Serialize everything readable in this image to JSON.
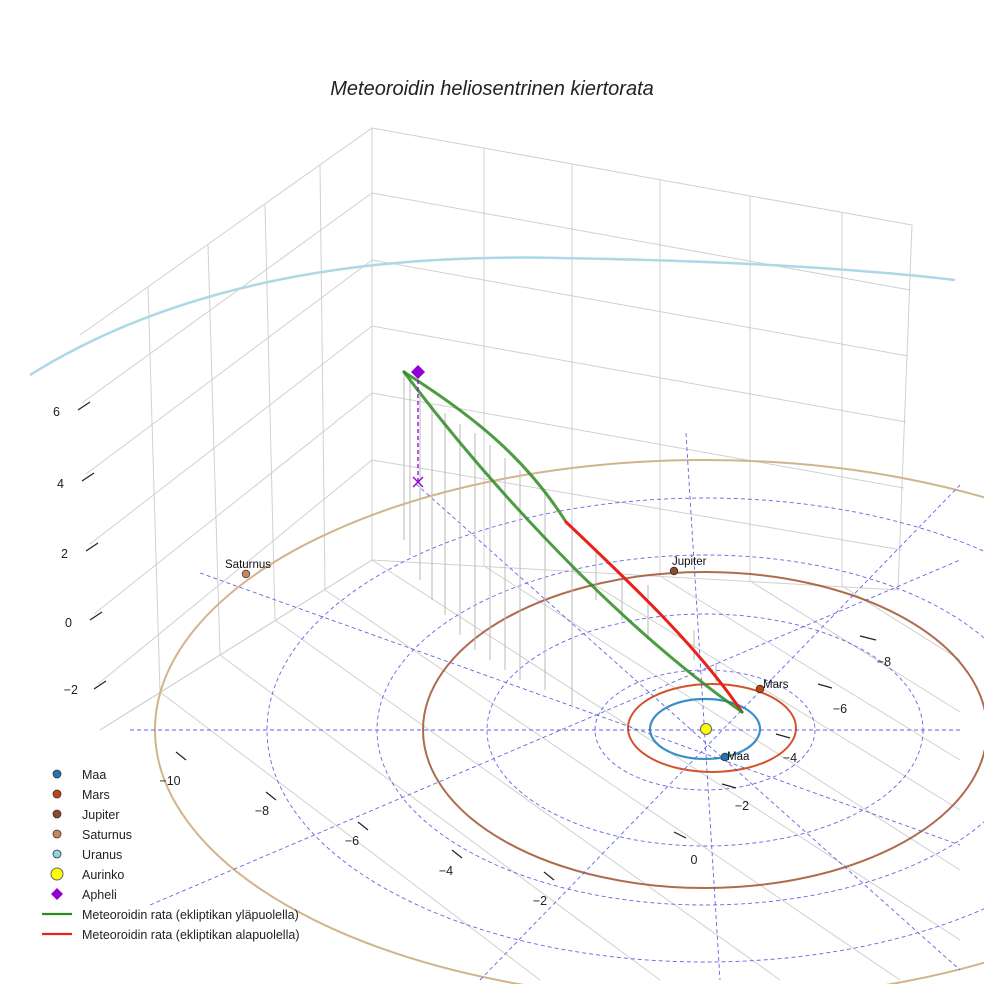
{
  "chart_data": {
    "type": "3d-line",
    "title": "Meteoroidin heliosentrinen kiertorata",
    "z_ticks": [
      "6",
      "4",
      "2",
      "0",
      "−2"
    ],
    "x_ticks": [
      "−10",
      "−8",
      "−6",
      "−4",
      "−2",
      "0"
    ],
    "y_ticks": [
      "−8",
      "−6",
      "−4",
      "−2"
    ],
    "planets": [
      {
        "name": "Maa",
        "color": "#1f77b4",
        "label_on_plot": "Maa"
      },
      {
        "name": "Mars",
        "color": "#c9410b",
        "label_on_plot": "Mars"
      },
      {
        "name": "Jupiter",
        "color": "#8c4a2a",
        "label_on_plot": "Jupiter"
      },
      {
        "name": "Saturnus",
        "color": "#c8875e",
        "label_on_plot": "Saturnus"
      },
      {
        "name": "Uranus",
        "color": "#7ec8e3",
        "label_on_plot": ""
      }
    ],
    "sun": {
      "name": "Aurinko",
      "color": "#ffff00"
    },
    "aphelion": {
      "name": "Apheli",
      "color": "#9400d3"
    },
    "series": [
      {
        "name": "Meteoroidin rata (ekliptikan yläpuolella)",
        "color": "#2e8b22"
      },
      {
        "name": "Meteoroidin rata (ekliptikan alapuolella)",
        "color": "#e8211b"
      }
    ],
    "legend_position": "bottom-left"
  },
  "legend": [
    {
      "label": "Maa",
      "kind": "dot",
      "color": "#1f77b4"
    },
    {
      "label": "Mars",
      "kind": "dot",
      "color": "#c9410b"
    },
    {
      "label": "Jupiter",
      "kind": "dot",
      "color": "#8c4a2a"
    },
    {
      "label": "Saturnus",
      "kind": "dot",
      "color": "#c8875e"
    },
    {
      "label": "Uranus",
      "kind": "dot",
      "color": "#8fd3ea"
    },
    {
      "label": "Aurinko",
      "kind": "sun",
      "color": "#ffff00"
    },
    {
      "label": "Apheli",
      "kind": "diamond",
      "color": "#9400d3"
    },
    {
      "label": "Meteoroidin rata (ekliptikan yläpuolella)",
      "kind": "line",
      "color": "#2e8b22"
    },
    {
      "label": "Meteoroidin rata (ekliptikan alapuolella)",
      "kind": "line",
      "color": "#e8211b"
    }
  ]
}
